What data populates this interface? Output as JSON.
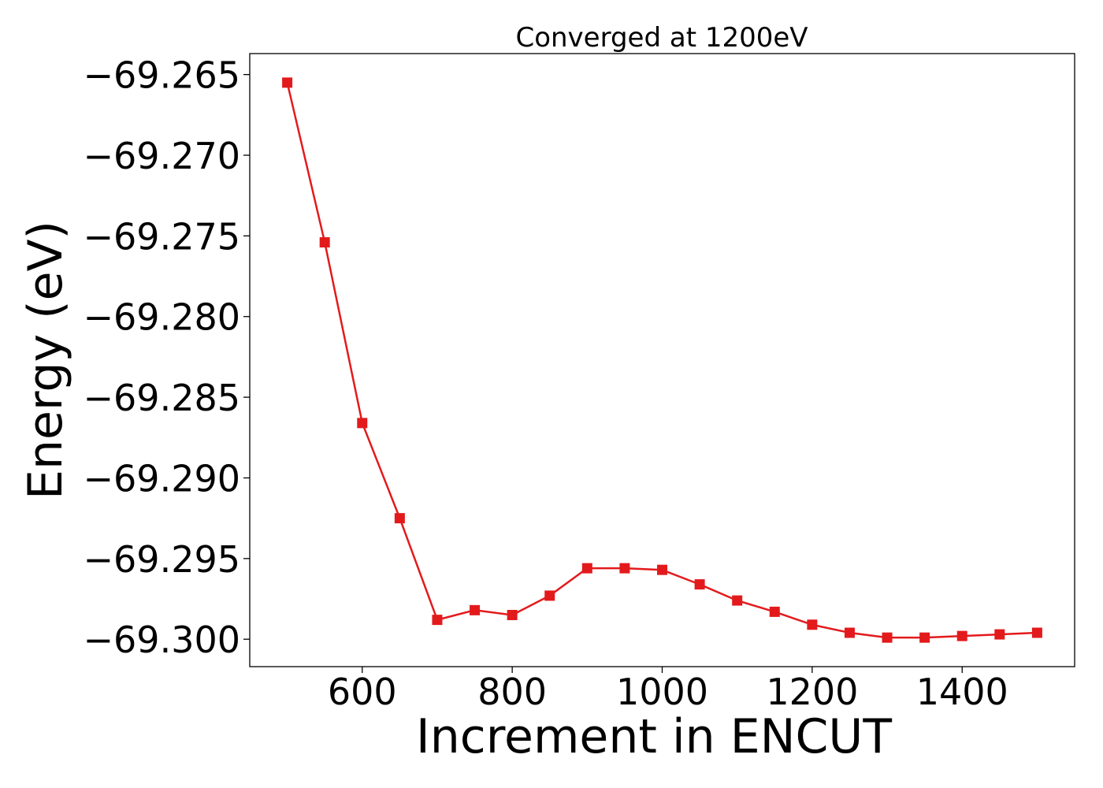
{
  "chart_data": {
    "type": "line",
    "title": "Converged at 1200eV",
    "xlabel": "Increment in ENCUT",
    "ylabel": "Energy (eV)",
    "xlim": [
      450,
      1550
    ],
    "ylim": [
      -69.3017,
      -69.2637
    ],
    "x_ticks": [
      600,
      800,
      1000,
      1200,
      1400
    ],
    "x_tick_labels": [
      "600",
      "800",
      "1000",
      "1200",
      "1400"
    ],
    "y_ticks": [
      -69.265,
      -69.27,
      -69.275,
      -69.28,
      -69.285,
      -69.29,
      -69.295,
      -69.3
    ],
    "y_tick_labels": [
      "−69.265",
      "−69.270",
      "−69.275",
      "−69.280",
      "−69.285",
      "−69.290",
      "−69.295",
      "−69.300"
    ],
    "grid": false,
    "series": [
      {
        "color": "#e31a1c",
        "marker": "square",
        "x": [
          500,
          550,
          600,
          650,
          700,
          750,
          800,
          850,
          900,
          950,
          1000,
          1050,
          1100,
          1150,
          1200,
          1250,
          1300,
          1350,
          1400,
          1450,
          1500
        ],
        "y": [
          -69.2655,
          -69.2754,
          -69.2866,
          -69.2925,
          -69.2988,
          -69.2982,
          -69.2985,
          -69.2973,
          -69.2956,
          -69.2956,
          -69.2957,
          -69.2966,
          -69.2976,
          -69.2983,
          -69.2991,
          -69.2996,
          -69.2999,
          -69.2999,
          -69.2998,
          -69.2997,
          -69.2996
        ]
      }
    ]
  }
}
